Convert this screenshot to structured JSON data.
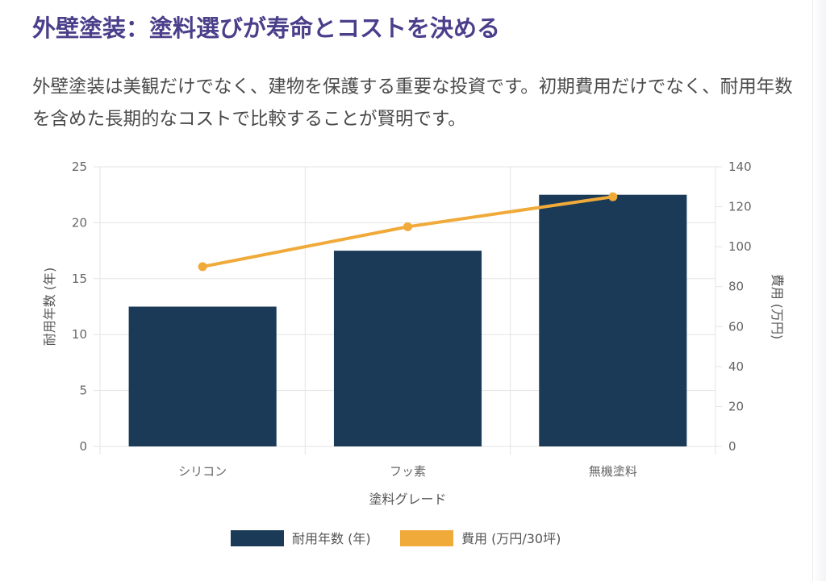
{
  "page": {
    "title": "外壁塗装：塗料選びが寿命とコストを決める",
    "description": "外壁塗装は美観だけでなく、建物を保護する重要な投資です。初期費用だけでなく、耐用年数を含めた長期的なコストで比較することが賢明です。"
  },
  "chart_data": {
    "type": "bar",
    "categories": [
      "シリコン",
      "フッ素",
      "無機塗料"
    ],
    "series": [
      {
        "name": "耐用年数 (年)",
        "type": "bar",
        "axis": "left",
        "values": [
          12.5,
          17.5,
          22.5
        ],
        "color": "#1a3a57"
      },
      {
        "name": "費用 (万円/30坪)",
        "type": "line",
        "axis": "right",
        "values": [
          90,
          110,
          125
        ],
        "color": "#f0aa3a"
      }
    ],
    "xlabel": "塗料グレード",
    "ylabel": "耐用年数 (年)",
    "y2label": "費用 (万円)",
    "ylim": [
      0,
      25
    ],
    "y2lim": [
      0,
      140
    ],
    "yticks": [
      "0",
      "5",
      "10",
      "15",
      "20",
      "25"
    ],
    "y2ticks": [
      "0",
      "20",
      "40",
      "60",
      "80",
      "100",
      "120",
      "140"
    ],
    "grid": true,
    "legend": "bottom"
  }
}
